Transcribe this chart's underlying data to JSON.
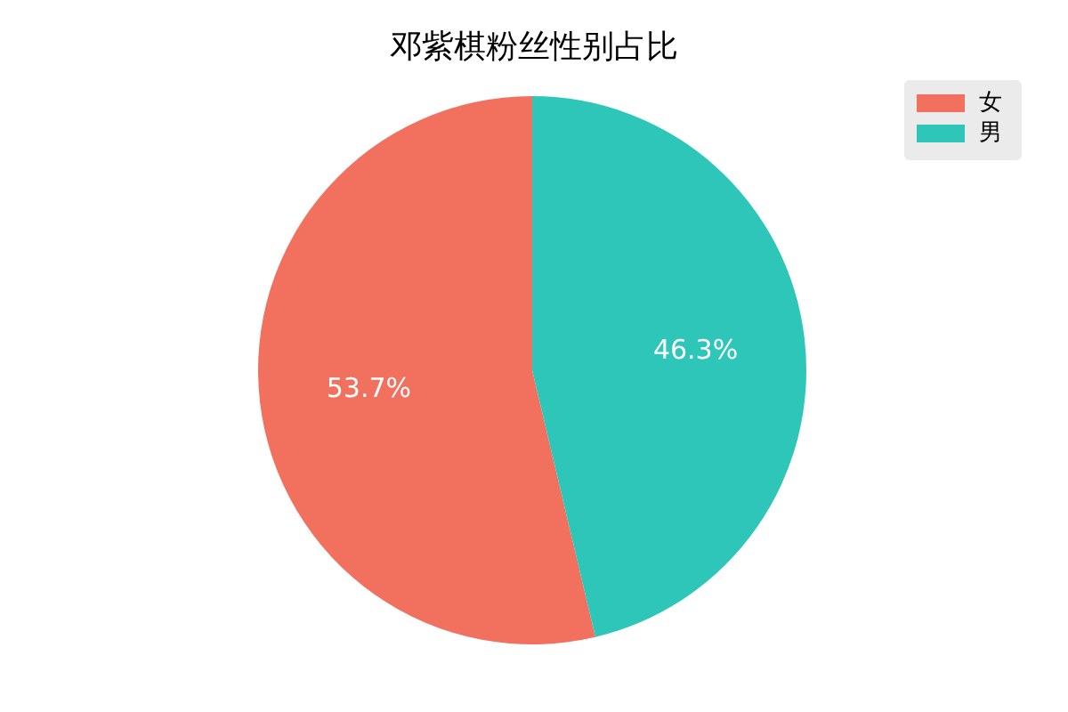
{
  "chart_data": {
    "type": "pie",
    "title": "邓紫棋粉丝性别占比",
    "categories": [
      "女",
      "男"
    ],
    "values": [
      53.7,
      46.3
    ],
    "colors": [
      "#f2705e",
      "#2ec6b8"
    ],
    "value_labels": [
      "53.7%",
      "46.3%"
    ],
    "legend": "top right"
  }
}
